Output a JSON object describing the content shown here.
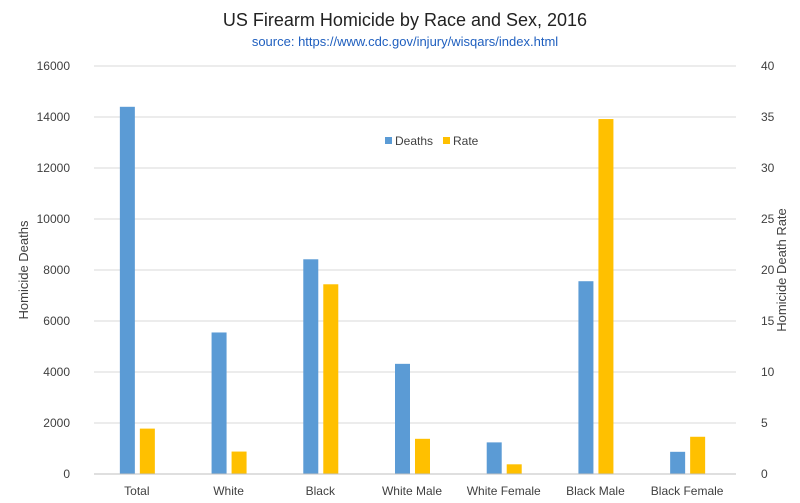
{
  "chart_data": {
    "type": "bar",
    "title": "US Firearm Homicide by Race and Sex, 2016",
    "subtitle": "source: https://www.cdc.gov/injury/wisqars/index.html",
    "categories": [
      "Total",
      "White",
      "Black",
      "White Male",
      "White Female",
      "Black Male",
      "Black Female"
    ],
    "series": [
      {
        "name": "Deaths",
        "axis": "left",
        "color": "#5b9bd5",
        "values": [
          14400,
          5550,
          8420,
          4320,
          1240,
          7560,
          870
        ]
      },
      {
        "name": "Rate",
        "axis": "right",
        "color": "#ffc000",
        "values": [
          4.45,
          2.2,
          18.6,
          3.45,
          0.95,
          34.8,
          3.65
        ]
      }
    ],
    "ylabel": "Homicide Deaths",
    "y2label": "Homicide Death Rate",
    "ylim": [
      0,
      16000
    ],
    "y2lim": [
      0,
      40
    ],
    "yticks": [
      "0",
      "2000",
      "4000",
      "6000",
      "8000",
      "10000",
      "12000",
      "14000",
      "16000"
    ],
    "y2ticks": [
      "0",
      "5",
      "10",
      "15",
      "20",
      "25",
      "30",
      "35",
      "40"
    ],
    "grid": true,
    "legend_position": "top-center"
  }
}
